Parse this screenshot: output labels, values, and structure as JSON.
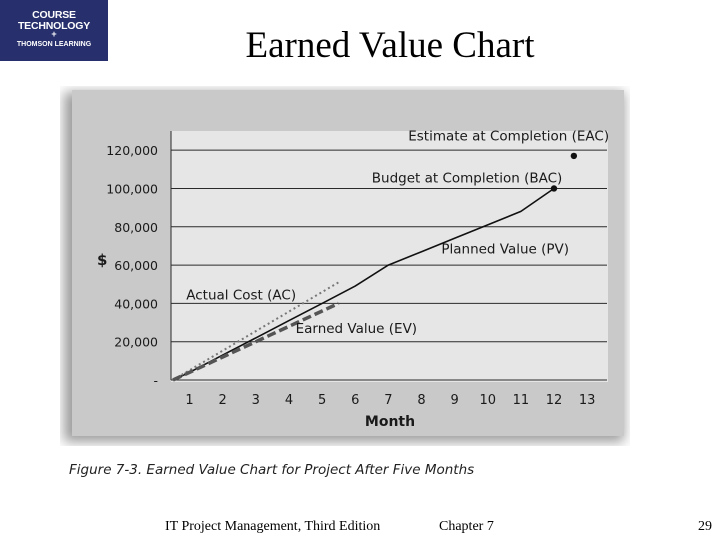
{
  "logo": {
    "line1": "COURSE",
    "line2": "TECHNOLOGY",
    "symbol": "+",
    "line3": "THOMSON LEARNING"
  },
  "slide_title": "Earned Value Chart",
  "caption": "Figure 7-3. Earned Value Chart for Project After Five Months",
  "footer": {
    "left": "IT Project Management, Third Edition",
    "center": "Chapter 7",
    "page": "29"
  },
  "chart_data": {
    "type": "line",
    "xlabel": "Month",
    "ylabel": "$",
    "xlim": [
      0.5,
      13.6
    ],
    "ylim": [
      0,
      130000
    ],
    "x_ticks": [
      "1",
      "2",
      "3",
      "4",
      "5",
      "6",
      "7",
      "8",
      "9",
      "10",
      "11",
      "12",
      "13"
    ],
    "y_ticks": [
      "-",
      "20,000",
      "40,000",
      "60,000",
      "80,000",
      "100,000",
      "120,000"
    ],
    "y_tick_values": [
      0,
      20000,
      40000,
      60000,
      80000,
      100000,
      120000
    ],
    "grid": "horizontal",
    "series": [
      {
        "name": "Planned Value (PV)",
        "style": "solid",
        "color": "#111111",
        "x": [
          0.5,
          1,
          2,
          3,
          4,
          5,
          6,
          7,
          8,
          9,
          10,
          11,
          12
        ],
        "y": [
          0,
          4000,
          13000,
          22000,
          31000,
          40000,
          49000,
          60000,
          67000,
          74000,
          81000,
          88000,
          100000
        ]
      },
      {
        "name": "Actual Cost (AC)",
        "style": "dotted",
        "color": "#777777",
        "x": [
          0.5,
          5.5
        ],
        "y": [
          0,
          51000
        ]
      },
      {
        "name": "Earned Value (EV)",
        "style": "dashed",
        "color": "#555555",
        "x": [
          0.5,
          5.5
        ],
        "y": [
          0,
          40000
        ]
      }
    ],
    "points": [
      {
        "name": "Budget at Completion (BAC)",
        "x": 12,
        "y": 100000
      },
      {
        "name": "Estimate at Completion (EAC)",
        "x": 12.6,
        "y": 117000
      }
    ],
    "annotations": [
      {
        "text": "Estimate at Completion (EAC)",
        "x": 7.6,
        "y": 125000
      },
      {
        "text": "Budget at Completion (BAC)",
        "x": 6.5,
        "y": 103000
      },
      {
        "text": "Planned Value (PV)",
        "x": 8.6,
        "y": 66000
      },
      {
        "text": "Actual Cost (AC)",
        "x": 0.9,
        "y": 42000
      },
      {
        "text": "Earned Value (EV)",
        "x": 4.2,
        "y": 24500
      }
    ]
  }
}
